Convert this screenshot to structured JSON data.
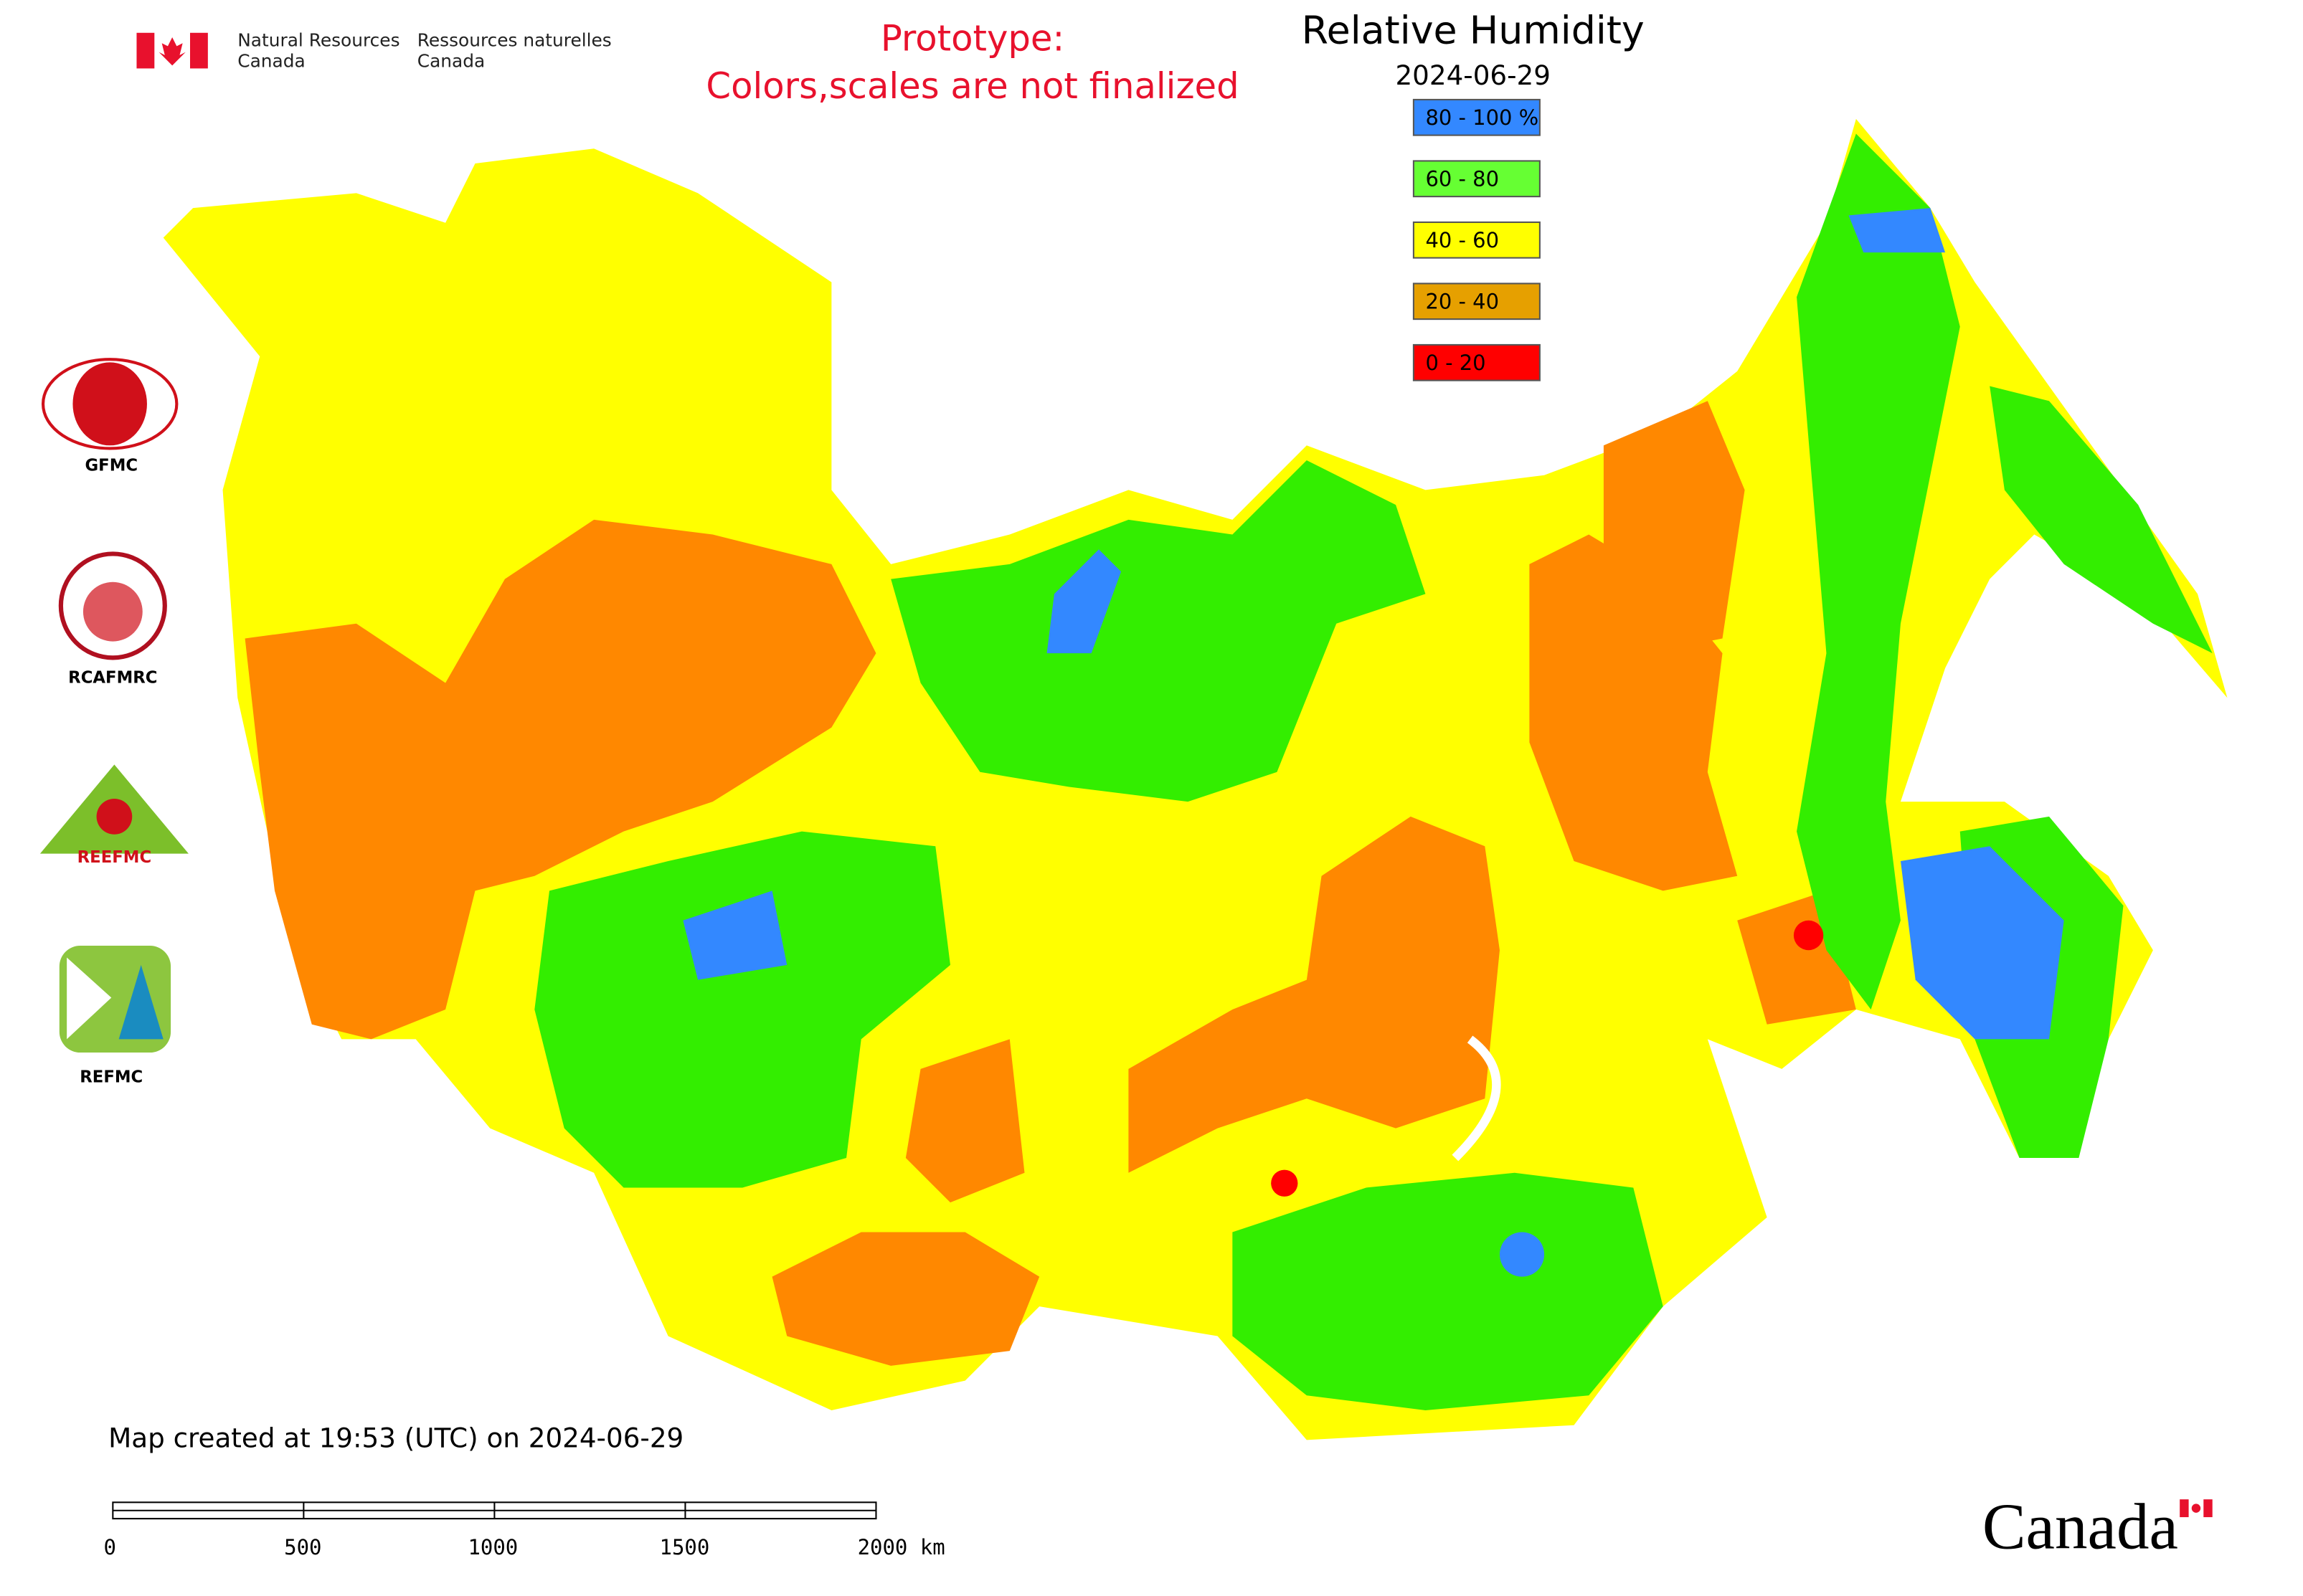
{
  "header": {
    "org_en": [
      "Natural Resources",
      "Canada"
    ],
    "org_fr": [
      "Ressources naturelles",
      "Canada"
    ],
    "notice": [
      "Prototype:",
      "Colors,scales are not finalized"
    ]
  },
  "legend": {
    "title": "Relative Humidity",
    "date": "2024-06-29",
    "items": [
      {
        "label": "80 - 100 %",
        "color": "#3388ff"
      },
      {
        "label": "60 - 80",
        "color": "#66ff33"
      },
      {
        "label": "40 - 60",
        "color": "#ffff00"
      },
      {
        "label": "20 - 40",
        "color": "#e6a000"
      },
      {
        "label": "0 - 20",
        "color": "#ff0000"
      }
    ]
  },
  "logos": [
    "GFMC",
    "RCAFMRC",
    "REEFMC",
    "REFMC"
  ],
  "footer": {
    "created": "Map created at 19:53 (UTC) on 2024-06-29",
    "scale_labels": [
      "0",
      "500",
      "1000",
      "1500",
      "2000 km"
    ],
    "wordmark": "Canada"
  }
}
